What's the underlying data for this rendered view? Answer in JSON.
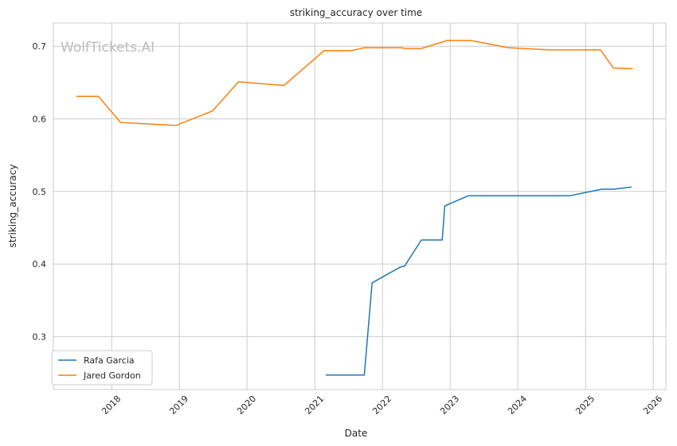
{
  "chart_data": {
    "type": "line",
    "title": "striking_accuracy over time",
    "xlabel": "Date",
    "ylabel": "striking_accuracy",
    "watermark": "WolfTickets.AI",
    "x_ticks": [
      "2018",
      "2019",
      "2020",
      "2021",
      "2022",
      "2023",
      "2024",
      "2025",
      "2026"
    ],
    "y_ticks": [
      "0.3",
      "0.4",
      "0.5",
      "0.6",
      "0.7"
    ],
    "xlim": [
      "2017-02-20",
      "2026-03-10"
    ],
    "ylim": [
      0.227,
      0.732
    ],
    "grid": true,
    "legend_position": "lower-left",
    "series": [
      {
        "name": "Rafa Garcia",
        "color": "#1f77b4",
        "points": [
          {
            "x": "2021-03-01",
            "y": 0.247
          },
          {
            "x": "2021-09-25",
            "y": 0.247
          },
          {
            "x": "2021-11-06",
            "y": 0.374
          },
          {
            "x": "2022-04-09",
            "y": 0.396
          },
          {
            "x": "2022-04-30",
            "y": 0.397
          },
          {
            "x": "2022-07-30",
            "y": 0.433
          },
          {
            "x": "2022-11-19",
            "y": 0.433
          },
          {
            "x": "2022-12-03",
            "y": 0.48
          },
          {
            "x": "2023-04-08",
            "y": 0.494
          },
          {
            "x": "2024-10-05",
            "y": 0.494
          },
          {
            "x": "2025-03-29",
            "y": 0.503
          },
          {
            "x": "2025-05-31",
            "y": 0.503
          },
          {
            "x": "2025-09-06",
            "y": 0.506
          }
        ]
      },
      {
        "name": "Jared Gordon",
        "color": "#ff7f0e",
        "points": [
          {
            "x": "2017-06-25",
            "y": 0.631
          },
          {
            "x": "2017-10-21",
            "y": 0.631
          },
          {
            "x": "2018-02-18",
            "y": 0.595
          },
          {
            "x": "2018-12-15",
            "y": 0.591
          },
          {
            "x": "2019-06-29",
            "y": 0.611
          },
          {
            "x": "2019-11-16",
            "y": 0.651
          },
          {
            "x": "2020-07-18",
            "y": 0.646
          },
          {
            "x": "2021-02-20",
            "y": 0.694
          },
          {
            "x": "2021-07-17",
            "y": 0.694
          },
          {
            "x": "2021-09-25",
            "y": 0.698
          },
          {
            "x": "2022-04-16",
            "y": 0.698
          },
          {
            "x": "2022-04-30",
            "y": 0.697
          },
          {
            "x": "2022-07-30",
            "y": 0.697
          },
          {
            "x": "2022-12-17",
            "y": 0.708
          },
          {
            "x": "2023-04-22",
            "y": 0.708
          },
          {
            "x": "2023-11-11",
            "y": 0.698
          },
          {
            "x": "2024-06-22",
            "y": 0.695
          },
          {
            "x": "2025-03-22",
            "y": 0.695
          },
          {
            "x": "2025-05-31",
            "y": 0.67
          },
          {
            "x": "2025-09-13",
            "y": 0.669
          }
        ]
      }
    ]
  }
}
